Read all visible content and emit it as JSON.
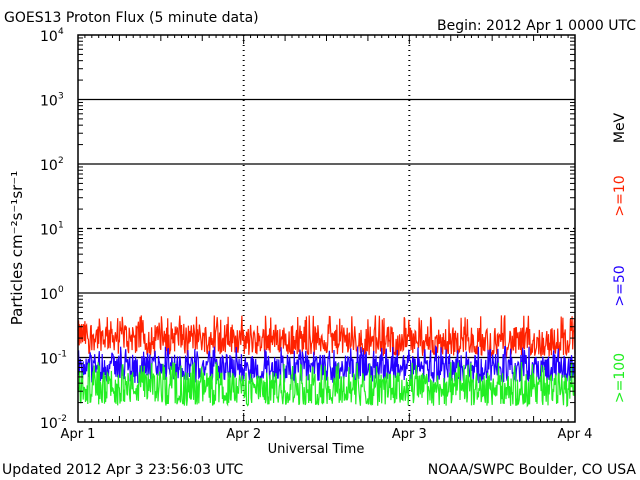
{
  "header": {
    "title": "GOES13 Proton Flux (5 minute data)",
    "begin": "Begin: 2012 Apr  1 0000 UTC"
  },
  "footer": {
    "updated": "Updated 2012 Apr  3 23:56:03 UTC",
    "source": "NOAA/SWPC Boulder, CO USA"
  },
  "energy_label": {
    "unit": "MeV",
    "labels": [
      {
        "text": ">=10",
        "color": "#ff2200"
      },
      {
        "text": ">=50",
        "color": "#2200ff"
      },
      {
        "text": ">=100",
        "color": "#22ee22"
      }
    ]
  },
  "chart_data": {
    "type": "line",
    "title": "GOES13 Proton Flux (5 minute data)",
    "xlabel": "Universal Time",
    "ylabel": "Particles cm⁻²s⁻¹sr⁻¹",
    "x_ticks": [
      "Apr 1",
      "Apr 2",
      "Apr 3",
      "Apr 4"
    ],
    "xlim": [
      "2012-04-01",
      "2012-04-04"
    ],
    "y_scale": "log",
    "ylim": [
      0.01,
      10000
    ],
    "y_ticks": [
      {
        "value": 0.01,
        "base": "10",
        "exp": "-2"
      },
      {
        "value": 0.1,
        "base": "10",
        "exp": "-1"
      },
      {
        "value": 1,
        "base": "10",
        "exp": "0"
      },
      {
        "value": 10,
        "base": "10",
        "exp": "1"
      },
      {
        "value": 100,
        "base": "10",
        "exp": "2"
      },
      {
        "value": 1000,
        "base": "10",
        "exp": "3"
      },
      {
        "value": 10000,
        "base": "10",
        "exp": "4"
      }
    ],
    "day_boundaries": [
      "Apr 2",
      "Apr 3"
    ],
    "threshold_line": 10,
    "series": [
      {
        "name": ">=10 MeV",
        "color": "#ff2200",
        "typical_low": 0.12,
        "typical_high": 0.4,
        "daily": [
          {
            "x": "Apr 1",
            "y": 0.22
          },
          {
            "x": "Apr 2",
            "y": 0.2
          },
          {
            "x": "Apr 3",
            "y": 0.18
          },
          {
            "x": "Apr 4",
            "y": 0.17
          }
        ]
      },
      {
        "name": ">=50 MeV",
        "color": "#2200ff",
        "typical_low": 0.045,
        "typical_high": 0.13,
        "daily": [
          {
            "x": "Apr 1",
            "y": 0.075
          },
          {
            "x": "Apr 2",
            "y": 0.07
          },
          {
            "x": "Apr 3",
            "y": 0.07
          },
          {
            "x": "Apr 4",
            "y": 0.07
          }
        ]
      },
      {
        "name": ">=100 MeV",
        "color": "#22ee22",
        "typical_low": 0.02,
        "typical_high": 0.075,
        "daily": [
          {
            "x": "Apr 1",
            "y": 0.035
          },
          {
            "x": "Apr 2",
            "y": 0.033
          },
          {
            "x": "Apr 3",
            "y": 0.033
          },
          {
            "x": "Apr 4",
            "y": 0.032
          }
        ]
      }
    ],
    "grid": true,
    "legend": "right-side vertical"
  }
}
